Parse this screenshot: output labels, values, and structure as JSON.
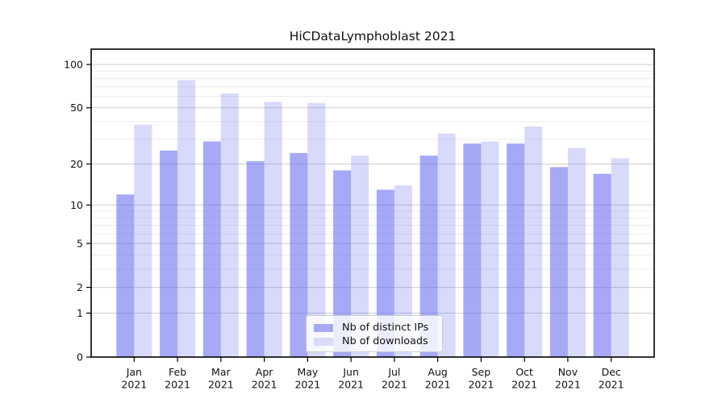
{
  "chart_data": {
    "type": "bar",
    "title": "HiCDataLymphoblast 2021",
    "year_label": "2021",
    "categories": [
      "Jan",
      "Feb",
      "Mar",
      "Apr",
      "May",
      "Jun",
      "Jul",
      "Aug",
      "Sep",
      "Oct",
      "Nov",
      "Dec"
    ],
    "series": [
      {
        "name": "Nb of distinct IPs",
        "values": [
          12,
          25,
          29,
          21,
          24,
          18,
          13,
          23,
          28,
          28,
          19,
          17
        ],
        "fill": "rgba(100,106,240,0.58)",
        "legend_color": "#a6a9f3"
      },
      {
        "name": "Nb of downloads",
        "values": [
          38,
          78,
          63,
          55,
          54,
          23,
          14,
          33,
          29,
          37,
          26,
          22
        ],
        "fill": "rgba(100,106,240,0.25)",
        "legend_color": "#d9dbf9"
      }
    ],
    "y_axis": {
      "scale": "symlog",
      "ticks": [
        0,
        1,
        2,
        5,
        10,
        20,
        50,
        100
      ],
      "minor_gridlines": [
        3,
        4,
        6,
        7,
        8,
        9,
        30,
        40,
        60,
        70,
        80,
        90
      ],
      "ylim": [
        0,
        128
      ]
    },
    "x_axis": {
      "label_line2": "2021"
    },
    "legend": {
      "position": "bottom-center"
    },
    "colors": {
      "major_grid": "#cdcdcd",
      "minor_grid": "#ececec",
      "axis": "#000000",
      "text": "#111111"
    },
    "grid": true
  }
}
